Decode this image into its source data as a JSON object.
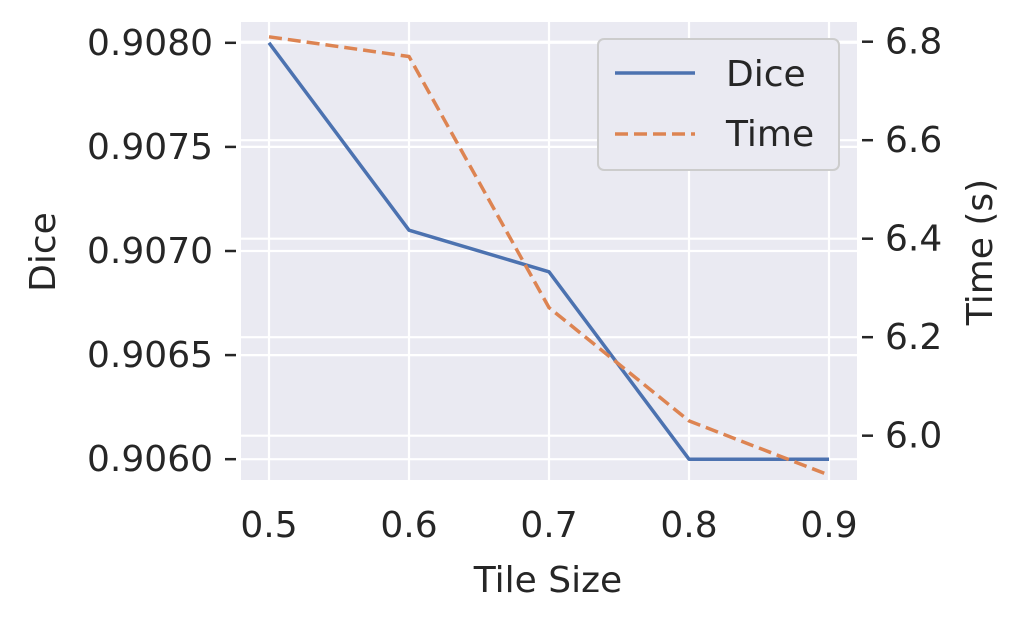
{
  "chart_data": {
    "type": "line",
    "x": [
      0.5,
      0.6,
      0.7,
      0.8,
      0.9
    ],
    "xlabel": "Tile Size",
    "ylabel": "Dice",
    "y2label": "Time (s)",
    "xlim": [
      0.48,
      0.92
    ],
    "ylim": [
      0.9059,
      0.9081
    ],
    "y2lim": [
      5.91,
      6.84
    ],
    "xticks": [
      "0.5",
      "0.6",
      "0.7",
      "0.8",
      "0.9"
    ],
    "yticks": [
      "0.9060",
      "0.9065",
      "0.9070",
      "0.9075",
      "0.9080"
    ],
    "y2ticks": [
      "6.0",
      "6.2",
      "6.4",
      "6.6",
      "6.8"
    ],
    "series": [
      {
        "name": "Dice",
        "axis": "left",
        "values": [
          0.908,
          0.9071,
          0.9069,
          0.906,
          0.906
        ],
        "color": "#4c72b0",
        "style": "solid"
      },
      {
        "name": "Time",
        "axis": "right",
        "values": [
          6.81,
          6.77,
          6.26,
          6.03,
          5.92
        ],
        "color": "#dd8452",
        "style": "dashed"
      }
    ],
    "legend_position": "top-right",
    "grid": true,
    "background": "#eaeaf2"
  }
}
